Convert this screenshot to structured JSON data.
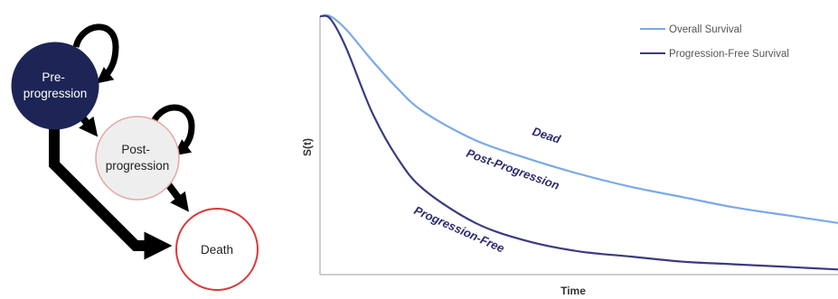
{
  "diagram": {
    "nodes": {
      "pre": {
        "lines": [
          "Pre-",
          "progression"
        ],
        "fill": "#1c2556",
        "stroke": "#1c2556",
        "text_color": "#ffffff"
      },
      "post": {
        "lines": [
          "Post-",
          "progression"
        ],
        "fill": "#eeeeee",
        "stroke": "#e4a7a7",
        "text_color": "#222222"
      },
      "death": {
        "label": "Death",
        "fill": "#ffffff",
        "stroke": "#d9383a",
        "text_color": "#222222"
      }
    },
    "edges": [
      {
        "from": "pre",
        "to": "pre"
      },
      {
        "from": "pre",
        "to": "post"
      },
      {
        "from": "pre",
        "to": "death"
      },
      {
        "from": "post",
        "to": "post"
      },
      {
        "from": "post",
        "to": "death"
      }
    ],
    "arrow_color": "#000000"
  },
  "chart_data": {
    "type": "line",
    "xlabel": "Time",
    "ylabel": "S(t)",
    "xlim": [
      0,
      1
    ],
    "ylim": [
      0,
      1
    ],
    "x": [
      0,
      0.02,
      0.05,
      0.1,
      0.15,
      0.2,
      0.3,
      0.4,
      0.5,
      0.6,
      0.7,
      0.8,
      0.9,
      1.0
    ],
    "series": [
      {
        "name": "Overall Survival",
        "color": "#7aa9e8",
        "values": [
          1.0,
          1.0,
          0.95,
          0.83,
          0.72,
          0.63,
          0.52,
          0.45,
          0.39,
          0.34,
          0.3,
          0.26,
          0.23,
          0.2
        ]
      },
      {
        "name": "Progression-Free Survival",
        "color": "#3b3b7f",
        "values": [
          1.0,
          0.99,
          0.88,
          0.63,
          0.45,
          0.33,
          0.2,
          0.13,
          0.09,
          0.07,
          0.05,
          0.04,
          0.03,
          0.02
        ]
      }
    ],
    "annotations": [
      "Dead",
      "Post-Progression",
      "Progression-Free"
    ],
    "legend": "top-right",
    "grid": false
  }
}
